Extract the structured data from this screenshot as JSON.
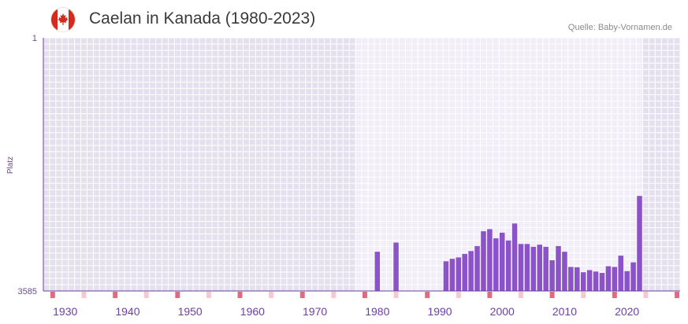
{
  "header": {
    "title": "Caelan in Kanada (1980-2023)",
    "source": "Quelle: Baby-Vornamen.de",
    "flag_icon": "canada-flag-icon"
  },
  "colors": {
    "bar": "#8b52c9",
    "axis": "#6b3fa0",
    "plot_bg_dark": "#e4e0ee",
    "plot_bg_light": "#f1eef8",
    "grid": "#ffffff",
    "decade_marker": "#e06b7d",
    "mid_marker": "#f4c9cf"
  },
  "chart_data": {
    "type": "bar",
    "title": "Caelan in Kanada (1980-2023)",
    "ylabel": "Platz",
    "xlabel": "",
    "y_axis_inverted": true,
    "ylim": [
      1,
      3585
    ],
    "y_tick_labels": [
      "1",
      "3585"
    ],
    "xlim": [
      1927,
      2028
    ],
    "x_tick_labels": [
      "1930",
      "1940",
      "1950",
      "1960",
      "1970",
      "1980",
      "1990",
      "2000",
      "2010",
      "2020"
    ],
    "highlight_range": [
      1977,
      2022
    ],
    "series": [
      {
        "name": "Platz",
        "years": [
          1980,
          1983,
          1991,
          1992,
          1993,
          1994,
          1995,
          1996,
          1997,
          1998,
          1999,
          2000,
          2001,
          2002,
          2003,
          2004,
          2005,
          2006,
          2007,
          2008,
          2009,
          2010,
          2011,
          2012,
          2013,
          2014,
          2015,
          2016,
          2017,
          2018,
          2019,
          2020,
          2021,
          2022
        ],
        "values": [
          3030,
          2900,
          3165,
          3130,
          3110,
          3060,
          3020,
          2950,
          2740,
          2710,
          2840,
          2760,
          2870,
          2630,
          2920,
          2920,
          2960,
          2930,
          2960,
          3150,
          2950,
          3030,
          3245,
          3250,
          3320,
          3290,
          3310,
          3330,
          3235,
          3245,
          3085,
          3305,
          3180,
          2240
        ]
      }
    ]
  }
}
